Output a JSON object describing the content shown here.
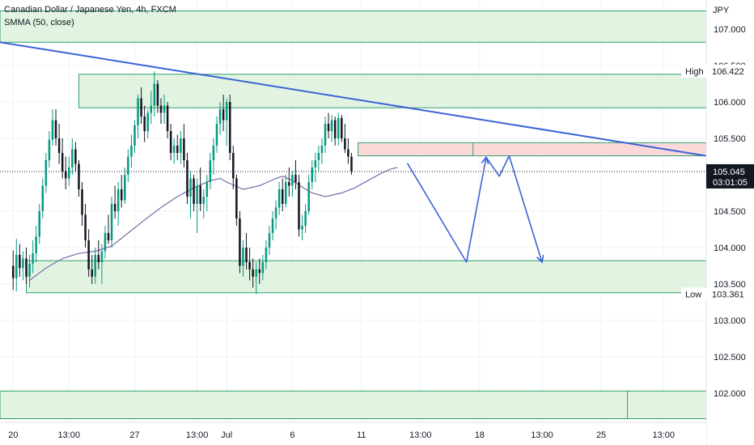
{
  "chart_data": {
    "type": "candlestick",
    "title": "Canadian Dollar / Japanese Yen, 4h, FXCM",
    "indicator": "SMMA (50, close)",
    "currency": "JPY",
    "ylim": [
      101.6,
      107.4
    ],
    "y_ticks": [
      "107.000",
      "106.500",
      "106.000",
      "105.500",
      "104.500",
      "104.000",
      "103.500",
      "103.000",
      "102.500",
      "102.000"
    ],
    "y_tick_values": [
      107.0,
      106.5,
      106.0,
      105.5,
      104.5,
      104.0,
      103.5,
      103.0,
      102.5,
      102.0
    ],
    "x_ticks": [
      "20",
      "13:00",
      "27",
      "13:00",
      "Jul",
      "6",
      "11",
      "13:00",
      "18",
      "13:00",
      "25",
      "13:00"
    ],
    "x_tick_positions": [
      0,
      17,
      37,
      56,
      65,
      85,
      106,
      124,
      142,
      161,
      179,
      198
    ],
    "x_range": [
      -4,
      211
    ],
    "last_bar_index": 117,
    "price_labels": {
      "high": {
        "label": "High",
        "value": "106.422",
        "y": 106.422
      },
      "current": {
        "value": "105.045",
        "y": 105.045,
        "countdown": "03:01:05"
      },
      "low": {
        "label": "Low",
        "value": "103.361",
        "y": 103.361
      }
    },
    "candles": [
      {
        "o": 103.75,
        "h": 103.96,
        "l": 103.42,
        "c": 103.58
      },
      {
        "o": 103.58,
        "h": 104.12,
        "l": 103.4,
        "c": 103.9
      },
      {
        "o": 103.9,
        "h": 104.05,
        "l": 103.6,
        "c": 103.72
      },
      {
        "o": 103.72,
        "h": 103.95,
        "l": 103.55,
        "c": 103.85
      },
      {
        "o": 103.85,
        "h": 104.0,
        "l": 103.5,
        "c": 103.6
      },
      {
        "o": 103.6,
        "h": 103.9,
        "l": 103.45,
        "c": 103.78
      },
      {
        "o": 103.78,
        "h": 104.1,
        "l": 103.65,
        "c": 103.92
      },
      {
        "o": 103.92,
        "h": 104.3,
        "l": 103.8,
        "c": 104.15
      },
      {
        "o": 104.15,
        "h": 104.6,
        "l": 104.05,
        "c": 104.5
      },
      {
        "o": 104.5,
        "h": 104.95,
        "l": 104.4,
        "c": 104.85
      },
      {
        "o": 104.85,
        "h": 105.3,
        "l": 104.75,
        "c": 105.2
      },
      {
        "o": 105.2,
        "h": 105.6,
        "l": 105.1,
        "c": 105.48
      },
      {
        "o": 105.48,
        "h": 105.9,
        "l": 105.4,
        "c": 105.75
      },
      {
        "o": 105.75,
        "h": 105.9,
        "l": 105.4,
        "c": 105.5
      },
      {
        "o": 105.5,
        "h": 105.7,
        "l": 105.15,
        "c": 105.3
      },
      {
        "o": 105.3,
        "h": 105.5,
        "l": 104.95,
        "c": 105.05
      },
      {
        "o": 105.05,
        "h": 105.25,
        "l": 104.8,
        "c": 104.95
      },
      {
        "o": 104.95,
        "h": 105.25,
        "l": 104.85,
        "c": 105.1
      },
      {
        "o": 105.1,
        "h": 105.5,
        "l": 105.0,
        "c": 105.35
      },
      {
        "o": 105.35,
        "h": 105.45,
        "l": 105.05,
        "c": 105.15
      },
      {
        "o": 105.15,
        "h": 105.2,
        "l": 104.7,
        "c": 104.8
      },
      {
        "o": 104.8,
        "h": 104.9,
        "l": 104.3,
        "c": 104.45
      },
      {
        "o": 104.45,
        "h": 104.6,
        "l": 104.0,
        "c": 104.1
      },
      {
        "o": 104.1,
        "h": 104.25,
        "l": 103.6,
        "c": 103.7
      },
      {
        "o": 103.7,
        "h": 103.9,
        "l": 103.5,
        "c": 103.6
      },
      {
        "o": 103.6,
        "h": 104.0,
        "l": 103.5,
        "c": 103.9
      },
      {
        "o": 103.9,
        "h": 104.1,
        "l": 103.7,
        "c": 103.8
      },
      {
        "o": 103.8,
        "h": 104.05,
        "l": 103.5,
        "c": 103.95
      },
      {
        "o": 103.95,
        "h": 104.3,
        "l": 103.85,
        "c": 104.2
      },
      {
        "o": 104.2,
        "h": 104.45,
        "l": 104.05,
        "c": 104.1
      },
      {
        "o": 104.1,
        "h": 104.7,
        "l": 104.0,
        "c": 104.6
      },
      {
        "o": 104.6,
        "h": 104.85,
        "l": 104.4,
        "c": 104.5
      },
      {
        "o": 104.5,
        "h": 104.9,
        "l": 104.3,
        "c": 104.8
      },
      {
        "o": 104.8,
        "h": 105.0,
        "l": 104.55,
        "c": 104.65
      },
      {
        "o": 104.65,
        "h": 105.1,
        "l": 104.6,
        "c": 105.0
      },
      {
        "o": 105.0,
        "h": 105.35,
        "l": 104.9,
        "c": 105.25
      },
      {
        "o": 105.25,
        "h": 105.55,
        "l": 105.1,
        "c": 105.4
      },
      {
        "o": 105.4,
        "h": 105.75,
        "l": 105.3,
        "c": 105.68
      },
      {
        "o": 105.68,
        "h": 106.1,
        "l": 105.5,
        "c": 106.05
      },
      {
        "o": 106.05,
        "h": 106.2,
        "l": 105.7,
        "c": 105.8
      },
      {
        "o": 105.8,
        "h": 105.95,
        "l": 105.45,
        "c": 105.6
      },
      {
        "o": 105.6,
        "h": 105.9,
        "l": 105.5,
        "c": 105.85
      },
      {
        "o": 105.85,
        "h": 106.15,
        "l": 105.7,
        "c": 105.95
      },
      {
        "o": 105.95,
        "h": 106.42,
        "l": 105.8,
        "c": 106.25
      },
      {
        "o": 106.25,
        "h": 106.3,
        "l": 105.85,
        "c": 105.95
      },
      {
        "o": 105.95,
        "h": 106.05,
        "l": 105.7,
        "c": 105.85
      },
      {
        "o": 105.85,
        "h": 106.1,
        "l": 105.7,
        "c": 105.95
      },
      {
        "o": 105.95,
        "h": 106.0,
        "l": 105.5,
        "c": 105.6
      },
      {
        "o": 105.6,
        "h": 105.7,
        "l": 105.2,
        "c": 105.3
      },
      {
        "o": 105.3,
        "h": 105.5,
        "l": 105.15,
        "c": 105.4
      },
      {
        "o": 105.4,
        "h": 105.55,
        "l": 105.2,
        "c": 105.3
      },
      {
        "o": 105.3,
        "h": 105.6,
        "l": 105.15,
        "c": 105.5
      },
      {
        "o": 105.5,
        "h": 105.7,
        "l": 105.1,
        "c": 105.2
      },
      {
        "o": 105.2,
        "h": 105.3,
        "l": 104.6,
        "c": 104.7
      },
      {
        "o": 104.7,
        "h": 105.05,
        "l": 104.4,
        "c": 104.95
      },
      {
        "o": 104.95,
        "h": 105.0,
        "l": 104.5,
        "c": 104.6
      },
      {
        "o": 104.6,
        "h": 104.95,
        "l": 104.2,
        "c": 104.85
      },
      {
        "o": 104.85,
        "h": 105.1,
        "l": 104.5,
        "c": 104.6
      },
      {
        "o": 104.6,
        "h": 104.8,
        "l": 104.4,
        "c": 104.7
      },
      {
        "o": 104.7,
        "h": 105.0,
        "l": 104.5,
        "c": 104.9
      },
      {
        "o": 104.9,
        "h": 105.3,
        "l": 104.8,
        "c": 105.2
      },
      {
        "o": 105.2,
        "h": 105.5,
        "l": 105.0,
        "c": 105.4
      },
      {
        "o": 105.4,
        "h": 105.8,
        "l": 105.3,
        "c": 105.7
      },
      {
        "o": 105.7,
        "h": 106.0,
        "l": 105.55,
        "c": 105.9
      },
      {
        "o": 105.9,
        "h": 106.1,
        "l": 105.6,
        "c": 105.75
      },
      {
        "o": 105.75,
        "h": 106.05,
        "l": 105.4,
        "c": 106.0
      },
      {
        "o": 106.0,
        "h": 106.1,
        "l": 105.2,
        "c": 105.3
      },
      {
        "o": 105.3,
        "h": 105.4,
        "l": 104.8,
        "c": 104.95
      },
      {
        "o": 104.95,
        "h": 105.0,
        "l": 104.3,
        "c": 104.4
      },
      {
        "o": 104.4,
        "h": 104.5,
        "l": 103.65,
        "c": 103.75
      },
      {
        "o": 103.75,
        "h": 104.1,
        "l": 103.6,
        "c": 104.0
      },
      {
        "o": 104.0,
        "h": 104.2,
        "l": 103.7,
        "c": 103.8
      },
      {
        "o": 103.8,
        "h": 104.0,
        "l": 103.55,
        "c": 103.7
      },
      {
        "o": 103.7,
        "h": 103.85,
        "l": 103.45,
        "c": 103.6
      },
      {
        "o": 103.6,
        "h": 103.8,
        "l": 103.36,
        "c": 103.7
      },
      {
        "o": 103.7,
        "h": 103.85,
        "l": 103.5,
        "c": 103.65
      },
      {
        "o": 103.65,
        "h": 103.9,
        "l": 103.55,
        "c": 103.8
      },
      {
        "o": 103.8,
        "h": 104.1,
        "l": 103.7,
        "c": 104.0
      },
      {
        "o": 104.0,
        "h": 104.3,
        "l": 103.9,
        "c": 104.2
      },
      {
        "o": 104.2,
        "h": 104.5,
        "l": 104.1,
        "c": 104.4
      },
      {
        "o": 104.4,
        "h": 104.65,
        "l": 104.25,
        "c": 104.55
      },
      {
        "o": 104.55,
        "h": 104.9,
        "l": 104.45,
        "c": 104.8
      },
      {
        "o": 104.8,
        "h": 104.95,
        "l": 104.5,
        "c": 104.6
      },
      {
        "o": 104.6,
        "h": 105.0,
        "l": 104.55,
        "c": 104.9
      },
      {
        "o": 104.9,
        "h": 105.1,
        "l": 104.7,
        "c": 104.85
      },
      {
        "o": 104.85,
        "h": 105.05,
        "l": 104.7,
        "c": 105.0
      },
      {
        "o": 105.0,
        "h": 105.2,
        "l": 104.8,
        "c": 104.9
      },
      {
        "o": 104.9,
        "h": 105.0,
        "l": 104.15,
        "c": 104.25
      },
      {
        "o": 104.25,
        "h": 104.45,
        "l": 104.1,
        "c": 104.3
      },
      {
        "o": 104.3,
        "h": 104.6,
        "l": 104.2,
        "c": 104.5
      },
      {
        "o": 104.5,
        "h": 105.0,
        "l": 104.45,
        "c": 104.9
      },
      {
        "o": 104.9,
        "h": 105.2,
        "l": 104.8,
        "c": 105.1
      },
      {
        "o": 105.1,
        "h": 105.3,
        "l": 104.9,
        "c": 105.2
      },
      {
        "o": 105.2,
        "h": 105.4,
        "l": 105.05,
        "c": 105.3
      },
      {
        "o": 105.3,
        "h": 105.5,
        "l": 105.15,
        "c": 105.4
      },
      {
        "o": 105.4,
        "h": 105.8,
        "l": 105.3,
        "c": 105.7
      },
      {
        "o": 105.7,
        "h": 105.85,
        "l": 105.5,
        "c": 105.6
      },
      {
        "o": 105.6,
        "h": 105.82,
        "l": 105.45,
        "c": 105.75
      },
      {
        "o": 105.75,
        "h": 105.8,
        "l": 105.4,
        "c": 105.5
      },
      {
        "o": 105.5,
        "h": 105.85,
        "l": 105.4,
        "c": 105.78
      },
      {
        "o": 105.78,
        "h": 105.82,
        "l": 105.45,
        "c": 105.5
      },
      {
        "o": 105.5,
        "h": 105.7,
        "l": 105.3,
        "c": 105.35
      },
      {
        "o": 105.35,
        "h": 105.5,
        "l": 105.15,
        "c": 105.25
      },
      {
        "o": 105.25,
        "h": 105.3,
        "l": 105.0,
        "c": 105.05
      }
    ],
    "smma": [
      [
        5,
        103.55
      ],
      [
        10,
        103.72
      ],
      [
        15,
        103.85
      ],
      [
        20,
        103.92
      ],
      [
        25,
        103.95
      ],
      [
        30,
        104.02
      ],
      [
        35,
        104.2
      ],
      [
        40,
        104.38
      ],
      [
        45,
        104.55
      ],
      [
        50,
        104.7
      ],
      [
        55,
        104.82
      ],
      [
        60,
        104.92
      ],
      [
        63,
        104.95
      ],
      [
        65,
        104.9
      ],
      [
        70,
        104.8
      ],
      [
        75,
        104.85
      ],
      [
        80,
        104.95
      ],
      [
        82,
        104.98
      ],
      [
        85,
        104.92
      ],
      [
        88,
        104.83
      ],
      [
        91,
        104.75
      ],
      [
        95,
        104.7
      ],
      [
        100,
        104.75
      ],
      [
        104,
        104.82
      ],
      [
        108,
        104.92
      ],
      [
        112,
        105.02
      ],
      [
        115,
        105.08
      ],
      [
        117,
        105.1
      ]
    ],
    "zones": [
      {
        "x1": -4,
        "x2": 211,
        "top": 107.25,
        "bottom": 106.82,
        "kind": "supply"
      },
      {
        "x1": 20,
        "x2": 211,
        "top": 106.38,
        "bottom": 105.92,
        "kind": "supply"
      },
      {
        "x1": 105,
        "x2": 211,
        "top": 105.44,
        "bottom": 105.26,
        "kind": "sell-zone"
      },
      {
        "x1": 4,
        "x2": 211,
        "top": 103.82,
        "bottom": 103.38,
        "kind": "demand"
      },
      {
        "x1": -4,
        "x2": 211,
        "top": 102.03,
        "bottom": 101.65,
        "kind": "demand"
      }
    ],
    "zone_dividers": [
      [
        140,
        105.26,
        105.44
      ],
      [
        187,
        101.65,
        102.03
      ]
    ],
    "trendline": [
      [
        -4,
        106.82
      ],
      [
        211,
        105.26
      ]
    ],
    "projection": [
      [
        120,
        105.16
      ],
      [
        138,
        103.8
      ],
      [
        144,
        105.24
      ],
      [
        148,
        104.98
      ],
      [
        151,
        105.26
      ],
      [
        161,
        103.8
      ]
    ],
    "colors": {
      "bull": "#089981",
      "bear": "#131722",
      "zone_fill": "#e2f4e1",
      "zone_border": "#2e9e6b",
      "sell_fill": "#fbd9d9",
      "trend": "#3b62d6",
      "smma": "#7b6aa6",
      "grid": "#f2f3f5",
      "axis_text": "#131722",
      "current_bg": "#131722",
      "label_bg": "#ffffff"
    }
  }
}
